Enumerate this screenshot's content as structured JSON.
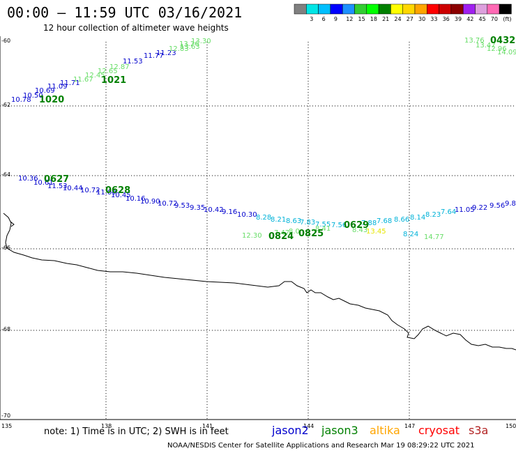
{
  "header": {
    "title": "00:00 – 11:59 UTC 03/16/2021",
    "subtitle": "12 hour collection of altimeter wave heights"
  },
  "colorbar": {
    "unit": "(ft)",
    "bins": [
      {
        "color": "#808080",
        "label": ""
      },
      {
        "color": "#00e5e5",
        "label": "3"
      },
      {
        "color": "#00bfff",
        "label": "6"
      },
      {
        "color": "#0000ff",
        "label": "9"
      },
      {
        "color": "#1e90ff",
        "label": "12"
      },
      {
        "color": "#32cd32",
        "label": "15"
      },
      {
        "color": "#00ff00",
        "label": "18"
      },
      {
        "color": "#008000",
        "label": "21"
      },
      {
        "color": "#ffff00",
        "label": "24"
      },
      {
        "color": "#ffd700",
        "label": "27"
      },
      {
        "color": "#ffa500",
        "label": "30"
      },
      {
        "color": "#ff0000",
        "label": "33"
      },
      {
        "color": "#cd0000",
        "label": "36"
      },
      {
        "color": "#8b0000",
        "label": "39"
      },
      {
        "color": "#a020f0",
        "label": "42"
      },
      {
        "color": "#dda0dd",
        "label": "45"
      },
      {
        "color": "#ff69b4",
        "label": "70"
      },
      {
        "color": "#000000",
        "label": ""
      }
    ]
  },
  "axes": {
    "lat_labels": [
      "-60",
      "-62",
      "-64",
      "-66",
      "-68",
      "-70"
    ],
    "lon_labels": [
      "135",
      "138",
      "141",
      "144",
      "147",
      "150"
    ]
  },
  "satellite_colors": {
    "jason2": "#0000cd",
    "jason3": "#008000",
    "altika": "#ffa500",
    "cryosat": "#ff0000",
    "s3a": "#b22222",
    "light_green": "#66dd66",
    "cyan": "#00b2d8",
    "yellow": "#e6e600"
  },
  "tracks": {
    "northwest_blue": [
      "10.78",
      "10.50",
      "10.69",
      "11.09",
      "11.71"
    ],
    "northwest_green": [
      "11.67",
      "12.45",
      "12.65",
      "12.87",
      "12.83",
      "13.26",
      "13.30",
      "13.63"
    ],
    "northwest_blue_upper": [
      "11.53",
      "11.77",
      "11.23"
    ],
    "northeast_green": [
      "13.76",
      "13.47",
      "12.96",
      "14.09"
    ],
    "middle_blue": [
      "10.36",
      "10.61",
      "11.53",
      "10.44",
      "10.72",
      "11.09",
      "10.45",
      "10.16",
      "10.90",
      "10.72",
      "9.53",
      "9.35",
      "10.42",
      "9.16",
      "10.30"
    ],
    "middle_cyan": [
      "8.28",
      "8.21",
      "8.63",
      "7.83",
      "7.55",
      "7.56",
      "7.88",
      "7.68",
      "8.66",
      "8.14",
      "8.23",
      "7.64"
    ],
    "middle_blue_east": [
      "11.05",
      "9.22",
      "9.56",
      "9.8"
    ],
    "lower_green": [
      "12.30",
      "7.47",
      "8.0",
      "8.41",
      "8.43"
    ],
    "lower_yellow": [
      "13.45"
    ],
    "lower_cyan": [
      "8.24"
    ],
    "lower_lightgreen": [
      "14.77"
    ]
  },
  "times": {
    "t1020": "1020",
    "t1021": "1021",
    "t0432": "0432",
    "t0627": "0627",
    "t0628": "0628",
    "t0824": "0824",
    "t0825": "0825",
    "t0629": "0629"
  },
  "note": {
    "text": "note:  1) Time is in UTC;  2) SWH is in feet"
  },
  "legend": {
    "jason2": "jason2",
    "jason3": "jason3",
    "altika": "altika",
    "cryosat": "cryosat",
    "s3a": "s3a"
  },
  "footer": {
    "text": "NOAA/NESDIS Center for Satellite Applications and Research    Mar 19 08:29:22 UTC 2021"
  }
}
